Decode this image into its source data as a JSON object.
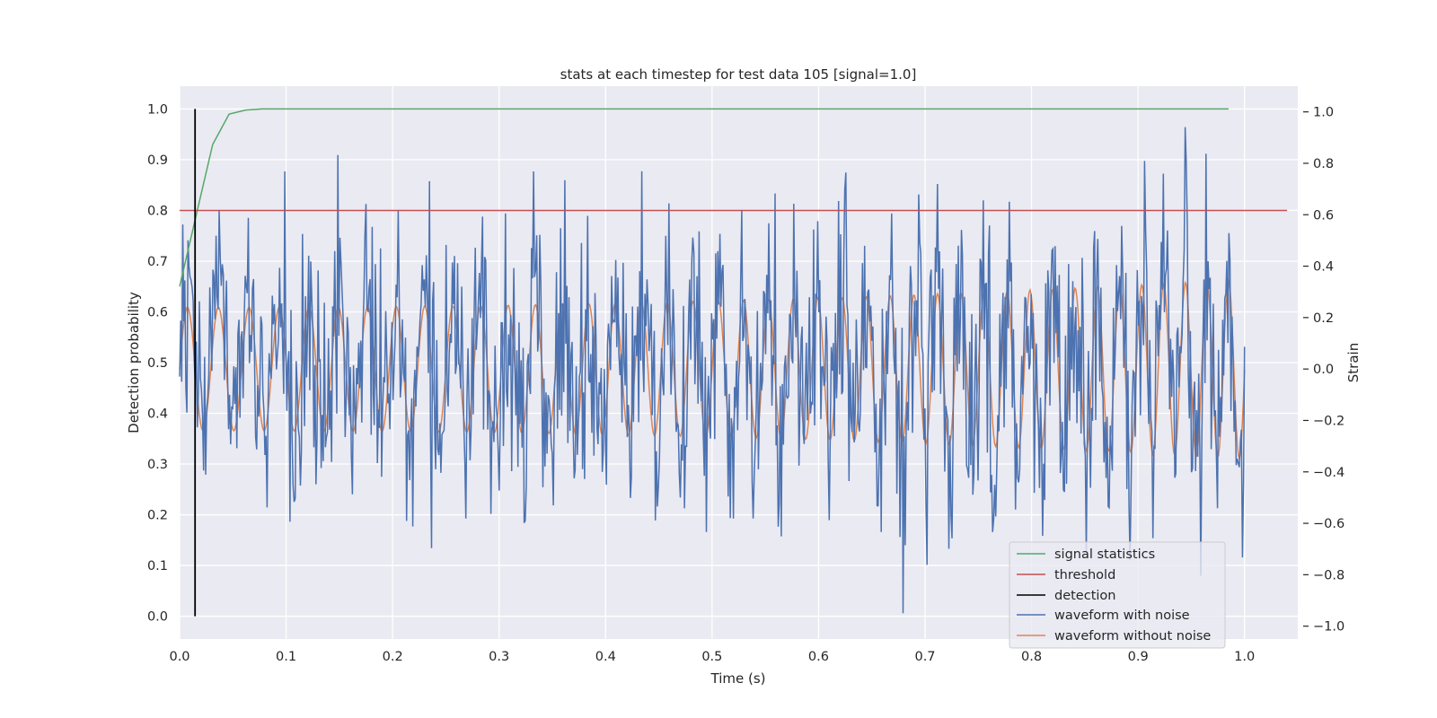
{
  "chart_data": {
    "type": "line",
    "title": "stats at each timestep for test data 105 [signal=1.0]",
    "xlabel": "Time (s)",
    "ylabel_left": "Detection probability",
    "ylabel_right": "Strain",
    "xlim": [
      0.0,
      1.05
    ],
    "ylim_left": [
      -0.045,
      1.045
    ],
    "ylim_right": [
      -1.05,
      1.1
    ],
    "x_ticks": [
      "0.0",
      "0.1",
      "0.2",
      "0.3",
      "0.4",
      "0.5",
      "0.6",
      "0.7",
      "0.8",
      "0.9",
      "1.0"
    ],
    "y_ticks_left": [
      "0.0",
      "0.1",
      "0.2",
      "0.3",
      "0.4",
      "0.5",
      "0.6",
      "0.7",
      "0.8",
      "0.9",
      "1.0"
    ],
    "y_ticks_right": [
      "−1.0",
      "−0.8",
      "−0.6",
      "−0.4",
      "−0.2",
      "0.0",
      "0.2",
      "0.4",
      "0.6",
      "0.8",
      "1.0"
    ],
    "grid": true,
    "legend_position": "lower-right",
    "colors": {
      "signal": "#55a868",
      "threshold": "#c44e52",
      "detection": "#000000",
      "noisy": "#4c72b0",
      "clean": "#dd8452",
      "plot_bg": "#eaeaf2",
      "grid": "#ffffff"
    },
    "series": [
      {
        "name": "signal statistics",
        "axis": "left",
        "x": [
          0.0,
          0.0155,
          0.031,
          0.0465,
          0.062,
          0.0775,
          0.1,
          0.2,
          0.4,
          0.6,
          0.8,
          0.985
        ],
        "y": [
          0.65,
          0.79,
          0.93,
          0.99,
          0.998,
          1.0,
          1.0,
          1.0,
          1.0,
          1.0,
          1.0,
          1.0
        ]
      },
      {
        "name": "threshold",
        "axis": "left",
        "x": [
          0.0,
          1.04
        ],
        "y": [
          0.8,
          0.8
        ]
      },
      {
        "name": "detection",
        "axis": "left",
        "x": [
          0.0145,
          0.0145
        ],
        "y": [
          0.0,
          1.0
        ]
      },
      {
        "name": "waveform with noise",
        "axis": "right",
        "description_points": 1024,
        "x_range": [
          0.0,
          1.0
        ],
        "y_range": [
          -0.95,
          1.0
        ]
      },
      {
        "name": "waveform without noise",
        "axis": "right",
        "description_points": 1024,
        "x_range": [
          0.0,
          1.0
        ],
        "y_range": [
          -0.3,
          0.35
        ]
      }
    ]
  }
}
